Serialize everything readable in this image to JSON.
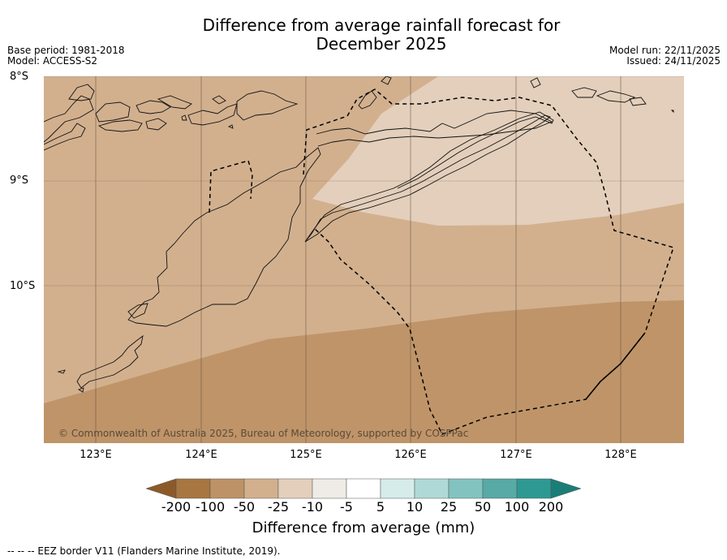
{
  "title_line1": "Difference from average rainfall forecast for",
  "title_line2": "December 2025",
  "base_period": "Base period: 1981-2018",
  "model": "Model: ACCESS-S2",
  "model_run": "Model run: 22/11/2025",
  "issued": "Issued: 24/11/2025",
  "lat_labels": [
    "8°S",
    "9°S",
    "10°S"
  ],
  "lon_labels": [
    "123°E",
    "124°E",
    "125°E",
    "126°E",
    "127°E",
    "128°E"
  ],
  "copyright": "© Commonwealth of Australia 2025, Bureau of Meteorology, supported by COSPPac",
  "colorbar": {
    "labels": [
      "-200",
      "-100",
      "-50",
      "-25",
      "-10",
      "-5",
      "5",
      "10",
      "25",
      "50",
      "100",
      "200"
    ],
    "colors": [
      "#8c5a28",
      "#a87640",
      "#bd9266",
      "#d2b08e",
      "#e3cfbb",
      "#efebe6",
      "#ffffff",
      "#d5ecea",
      "#aed9d6",
      "#82c3bf",
      "#57aaa6",
      "#2e9993",
      "#1b7d78"
    ],
    "title": "Difference from average (mm)"
  },
  "footnote": "--  --  -- EEZ border V11 (Flanders Marine Institute, 2019).",
  "colors": {
    "band_light": "#e3cfbb",
    "band_mid": "#d2b08e",
    "band_dark": "#bf9468"
  }
}
